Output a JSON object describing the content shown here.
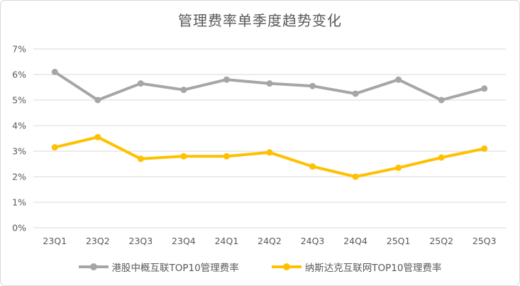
{
  "chart_data": {
    "type": "line",
    "title": "管理费率单季度趋势变化",
    "categories": [
      "23Q1",
      "23Q2",
      "23Q3",
      "23Q4",
      "24Q1",
      "24Q2",
      "24Q3",
      "24Q4",
      "25Q1",
      "25Q2",
      "25Q3"
    ],
    "series": [
      {
        "name": "港股中概互联TOP10管理费率",
        "values": [
          6.1,
          5.0,
          5.65,
          5.4,
          5.8,
          5.65,
          5.55,
          5.25,
          5.8,
          5.0,
          5.45
        ],
        "color": "#a6a6a6"
      },
      {
        "name": "纳斯达克互联网TOP10管理费率",
        "values": [
          3.15,
          3.55,
          2.7,
          2.8,
          2.8,
          2.95,
          2.4,
          2.0,
          2.35,
          2.75,
          3.1
        ],
        "color": "#ffc000"
      }
    ],
    "xlabel": "",
    "ylabel": "",
    "ylim": [
      0,
      7
    ],
    "yticks": [
      {
        "value": 0,
        "label": "0%"
      },
      {
        "value": 1,
        "label": "1%"
      },
      {
        "value": 2,
        "label": "2%"
      },
      {
        "value": 3,
        "label": "3%"
      },
      {
        "value": 4,
        "label": "4%"
      },
      {
        "value": 5,
        "label": "5%"
      },
      {
        "value": 6,
        "label": "6%"
      },
      {
        "value": 7,
        "label": "7%"
      }
    ],
    "grid": true,
    "legend_position": "bottom"
  },
  "colors": {
    "gridline": "#d9d9d9",
    "axis_text": "#595959",
    "title_text": "#595959",
    "frame_border": "#d9d9d9",
    "background": "#ffffff"
  }
}
